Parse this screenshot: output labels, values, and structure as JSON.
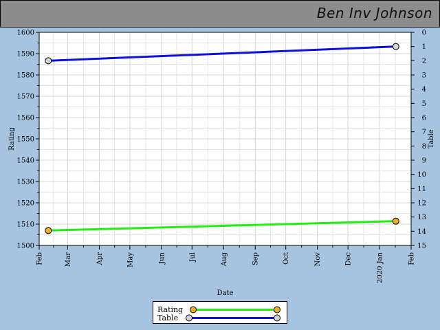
{
  "header": {
    "title": "Ben Inv Johnson"
  },
  "colors": {
    "rating": "#22ee11",
    "table": "#1010dd",
    "rating_marker": "#f2b01e",
    "table_marker": "#d0d4d8"
  },
  "chart_data": {
    "type": "line",
    "xlabel": "Date",
    "ylabel_left": "Rating",
    "ylabel_right": "Table",
    "x_range": [
      "2019-02-01",
      "2020-02-01"
    ],
    "x_tick_labels": [
      "Feb",
      "Mar",
      "Apr",
      "May",
      "Jun",
      "Jul",
      "Aug",
      "Sep",
      "Oct",
      "Nov",
      "Dec",
      "2020 Jan",
      "Feb"
    ],
    "y_left_range": [
      1500,
      1600
    ],
    "y_left_ticks": [
      1500,
      1510,
      1520,
      1530,
      1540,
      1550,
      1560,
      1570,
      1580,
      1590,
      1600
    ],
    "y_right_range": [
      15,
      0
    ],
    "y_right_ticks": [
      0,
      1,
      2,
      3,
      4,
      5,
      6,
      7,
      8,
      9,
      10,
      11,
      12,
      13,
      14,
      15
    ],
    "grid": true,
    "legend_position": "bottom-center",
    "series": [
      {
        "name": "Rating",
        "axis": "left",
        "x": [
          "2019-02-10",
          "2020-01-17"
        ],
        "y": [
          1507,
          1511.4
        ]
      },
      {
        "name": "Table",
        "axis": "right",
        "x": [
          "2019-02-10",
          "2020-01-17"
        ],
        "y": [
          2,
          1
        ]
      }
    ]
  }
}
